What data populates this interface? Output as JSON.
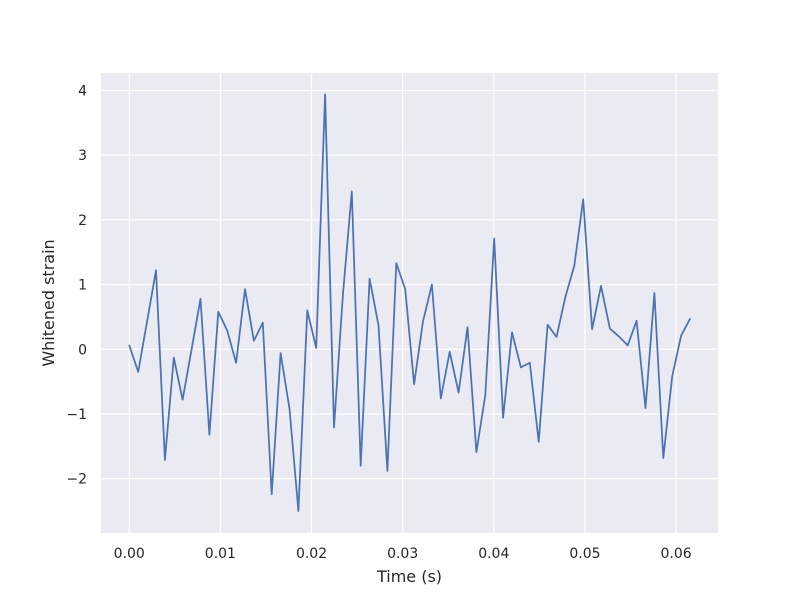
{
  "chart_data": {
    "type": "line",
    "title": "",
    "xlabel": "Time (s)",
    "ylabel": "Whitened strain",
    "xlim": [
      -0.0031,
      0.0646
    ],
    "ylim": [
      -2.84,
      4.27
    ],
    "grid": true,
    "legend": "none",
    "x_ticks": [
      0.0,
      0.01,
      0.02,
      0.03,
      0.04,
      0.05,
      0.06
    ],
    "x_tick_labels": [
      "0.00",
      "0.01",
      "0.02",
      "0.03",
      "0.04",
      "0.05",
      "0.06"
    ],
    "y_ticks": [
      4,
      3,
      2,
      1,
      0,
      -1,
      -2
    ],
    "y_tick_labels": [
      "4",
      "3",
      "2",
      "1",
      "0",
      "−1",
      "−2"
    ],
    "series": [
      {
        "color": "#4c72b0",
        "x": [
          0.0,
          0.000977,
          0.001953,
          0.00293,
          0.003906,
          0.004883,
          0.005859,
          0.006836,
          0.007813,
          0.008789,
          0.009766,
          0.010742,
          0.011719,
          0.012695,
          0.013672,
          0.014648,
          0.015625,
          0.016602,
          0.017578,
          0.018555,
          0.019531,
          0.020508,
          0.021484,
          0.022461,
          0.023438,
          0.024414,
          0.025391,
          0.026367,
          0.027344,
          0.02832,
          0.029297,
          0.030273,
          0.03125,
          0.032227,
          0.033203,
          0.03418,
          0.035156,
          0.036133,
          0.037109,
          0.038086,
          0.039063,
          0.040039,
          0.041016,
          0.041992,
          0.042969,
          0.043945,
          0.044922,
          0.045898,
          0.046875,
          0.047852,
          0.048828,
          0.049805,
          0.050781,
          0.051758,
          0.052734,
          0.053711,
          0.054688,
          0.055664,
          0.056641,
          0.057617,
          0.058594,
          0.05957,
          0.060547,
          0.061523
        ],
        "y": [
          0.06,
          -0.35,
          0.43,
          1.22,
          -1.71,
          -0.13,
          -0.78,
          0.0,
          0.78,
          -1.32,
          0.58,
          0.29,
          -0.21,
          0.93,
          0.13,
          0.41,
          -2.24,
          -0.06,
          -0.92,
          -2.5,
          0.6,
          0.02,
          3.94,
          -1.21,
          0.84,
          2.44,
          -1.8,
          1.09,
          0.37,
          -1.88,
          1.33,
          0.93,
          -0.54,
          0.43,
          1.0,
          -0.76,
          -0.04,
          -0.67,
          0.34,
          -1.59,
          -0.71,
          1.71,
          -1.06,
          0.26,
          -0.28,
          -0.21,
          -1.43,
          0.38,
          0.19,
          0.81,
          1.29,
          2.32,
          0.31,
          0.98,
          0.32,
          0.2,
          0.06,
          0.44,
          -0.91,
          0.87,
          -1.68,
          -0.42,
          0.21,
          0.47
        ]
      }
    ]
  }
}
